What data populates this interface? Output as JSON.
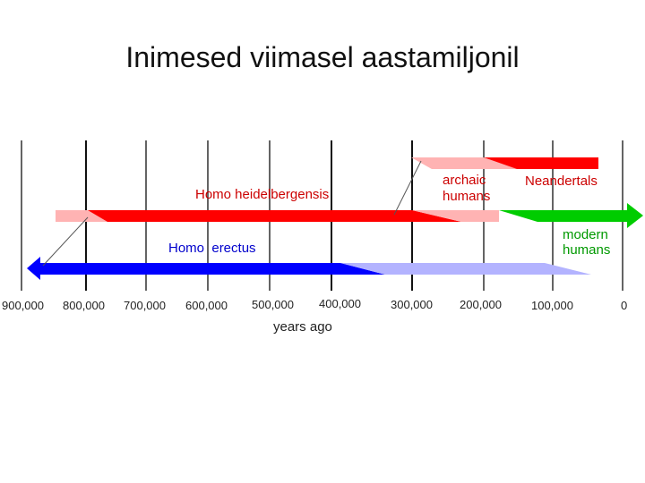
{
  "title": "Inimesed viimasel aastamiljonil",
  "axis": {
    "label": "years ago",
    "ticks": [
      {
        "label": "900,000",
        "value": 900000
      },
      {
        "label": "800,000",
        "value": 800000
      },
      {
        "label": "700,000",
        "value": 700000
      },
      {
        "label": "600,000",
        "value": 600000
      },
      {
        "label": "500,000",
        "value": 500000
      },
      {
        "label": "400,000",
        "value": 400000
      },
      {
        "label": "300,000",
        "value": 300000
      },
      {
        "label": "200,000",
        "value": 200000
      },
      {
        "label": "100,000",
        "value": 100000
      },
      {
        "label": "0",
        "value": 0
      }
    ]
  },
  "species": [
    {
      "name": "Homo heidelbergensis",
      "label_lines": [
        "Homo heidelbergensis"
      ],
      "color": "#ff0000",
      "fade_color": "#ffb3b3",
      "start_years_ago": 800000,
      "fade_start_years_ago": 750000,
      "fade_end_years_ago": 170000
    },
    {
      "name": "archaic humans",
      "label_lines": [
        "archaic",
        "humans"
      ],
      "color": "#ff0000",
      "fade_color": "#ffb3b3",
      "start_years_ago": 300000,
      "end_years_ago": 30000
    },
    {
      "name": "Neandertals",
      "label_lines": [
        "Neandertals"
      ],
      "color": "#ff0000",
      "end_years_ago": 30000
    },
    {
      "name": "modern humans",
      "label_lines": [
        "modern",
        "humans"
      ],
      "color": "#00cc00",
      "start_years_ago": 195000,
      "end_years_ago": 0
    },
    {
      "name": "Homo erectus",
      "label_lines": [
        "Homo  erectus"
      ],
      "color": "#0000ff",
      "fade_color": "#b3b3ff",
      "start_years_ago": 900000,
      "fade_start_years_ago": 360000,
      "end_years_ago": 50000
    }
  ],
  "colors": {
    "red": "#ff0000",
    "pink": "#ffb3b3",
    "green": "#00cc00",
    "blue": "#0000ff",
    "lightblue": "#b3b3ff",
    "label_red": "#cc0000",
    "label_blue": "#0000cc"
  }
}
